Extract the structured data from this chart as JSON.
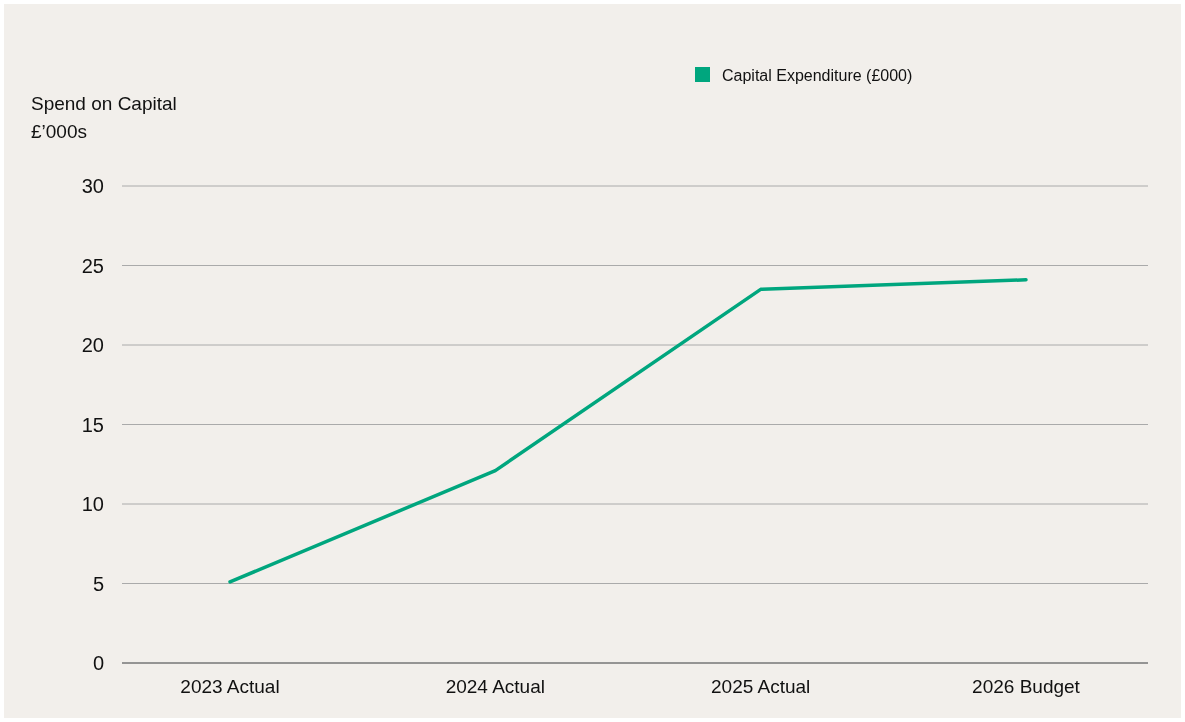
{
  "chart_data": {
    "type": "line",
    "ylabel": "Spend on Capital\n£’000s",
    "categories": [
      "2023 Actual",
      "2024 Actual",
      "2025 Actual",
      "2026 Budget"
    ],
    "series": [
      {
        "name": "Capital Expenditure (£000)",
        "color": "#00a67e",
        "values": [
          5.1,
          12.1,
          23.5,
          24.1
        ]
      }
    ],
    "ylim": [
      0,
      30
    ],
    "yticks": [
      0,
      5,
      10,
      15,
      20,
      25,
      30
    ],
    "grid": "y",
    "legend": "top right",
    "marker": "none",
    "line_style": "solid"
  }
}
